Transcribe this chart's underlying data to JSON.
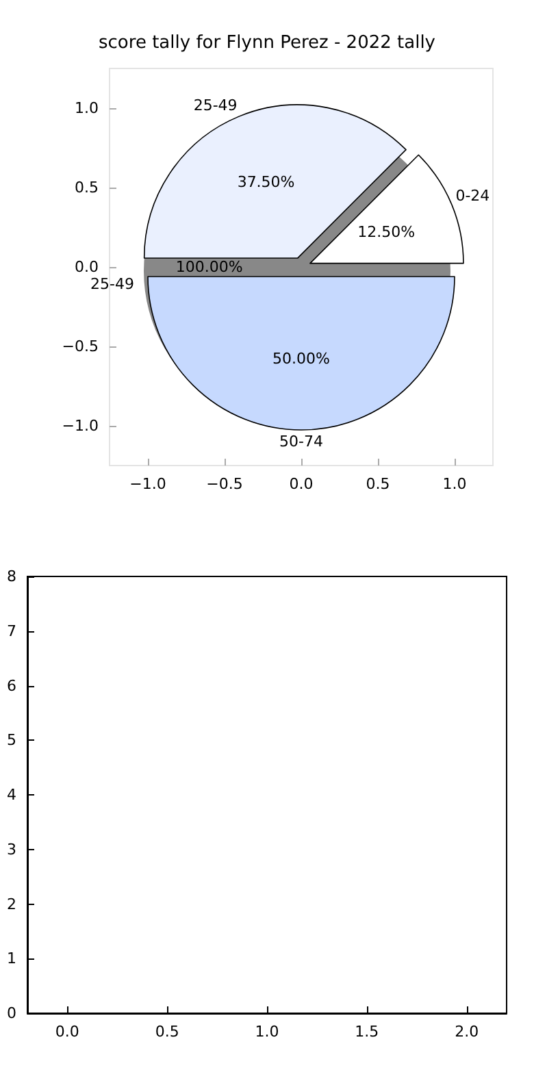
{
  "chart_data": [
    {
      "type": "scatter",
      "title": "score tally for Flynn Perez - 2022 tally",
      "xlim": [
        -1.25,
        1.25
      ],
      "ylim": [
        -1.25,
        1.25
      ],
      "xticks": [
        {
          "value": -1,
          "label": "−1.0"
        },
        {
          "value": -0.5,
          "label": "−0.5"
        },
        {
          "value": 0,
          "label": "0.0"
        },
        {
          "value": 0.5,
          "label": "0.5"
        },
        {
          "value": 1,
          "label": "1.0"
        }
      ],
      "yticks": [
        {
          "value": -1,
          "label": "−1.0"
        },
        {
          "value": -0.5,
          "label": "−0.5"
        },
        {
          "value": 0,
          "label": "0.0"
        },
        {
          "value": 0.5,
          "label": "0.5"
        },
        {
          "value": 1,
          "label": "1.0"
        }
      ]
    },
    {
      "type": "pie",
      "categories": [
        "0-24",
        "25-49",
        "50-74"
      ],
      "values": [
        12.5,
        37.5,
        50
      ],
      "value_labels": [
        "12.50%",
        "37.50%",
        "50.00%"
      ],
      "colors": [
        "#ffffff",
        "#eaf0fe",
        "#c6d9fe"
      ]
    },
    {
      "type": "pie",
      "categories": [
        "25-49"
      ],
      "values": [
        100
      ],
      "value_labels": [
        "100.00%"
      ],
      "colors": [
        "#888888"
      ]
    },
    {
      "type": "scatter",
      "xlim": [
        -0.2,
        2.2
      ],
      "ylim": [
        0,
        8
      ],
      "xticks": [
        {
          "value": 0,
          "label": "0.0"
        },
        {
          "value": 0.5,
          "label": "0.5"
        },
        {
          "value": 1,
          "label": "1.0"
        },
        {
          "value": 1.5,
          "label": "1.5"
        },
        {
          "value": 2,
          "label": "2.0"
        }
      ],
      "yticks": [
        0,
        1,
        2,
        3,
        4,
        5,
        6,
        7,
        8
      ]
    }
  ]
}
